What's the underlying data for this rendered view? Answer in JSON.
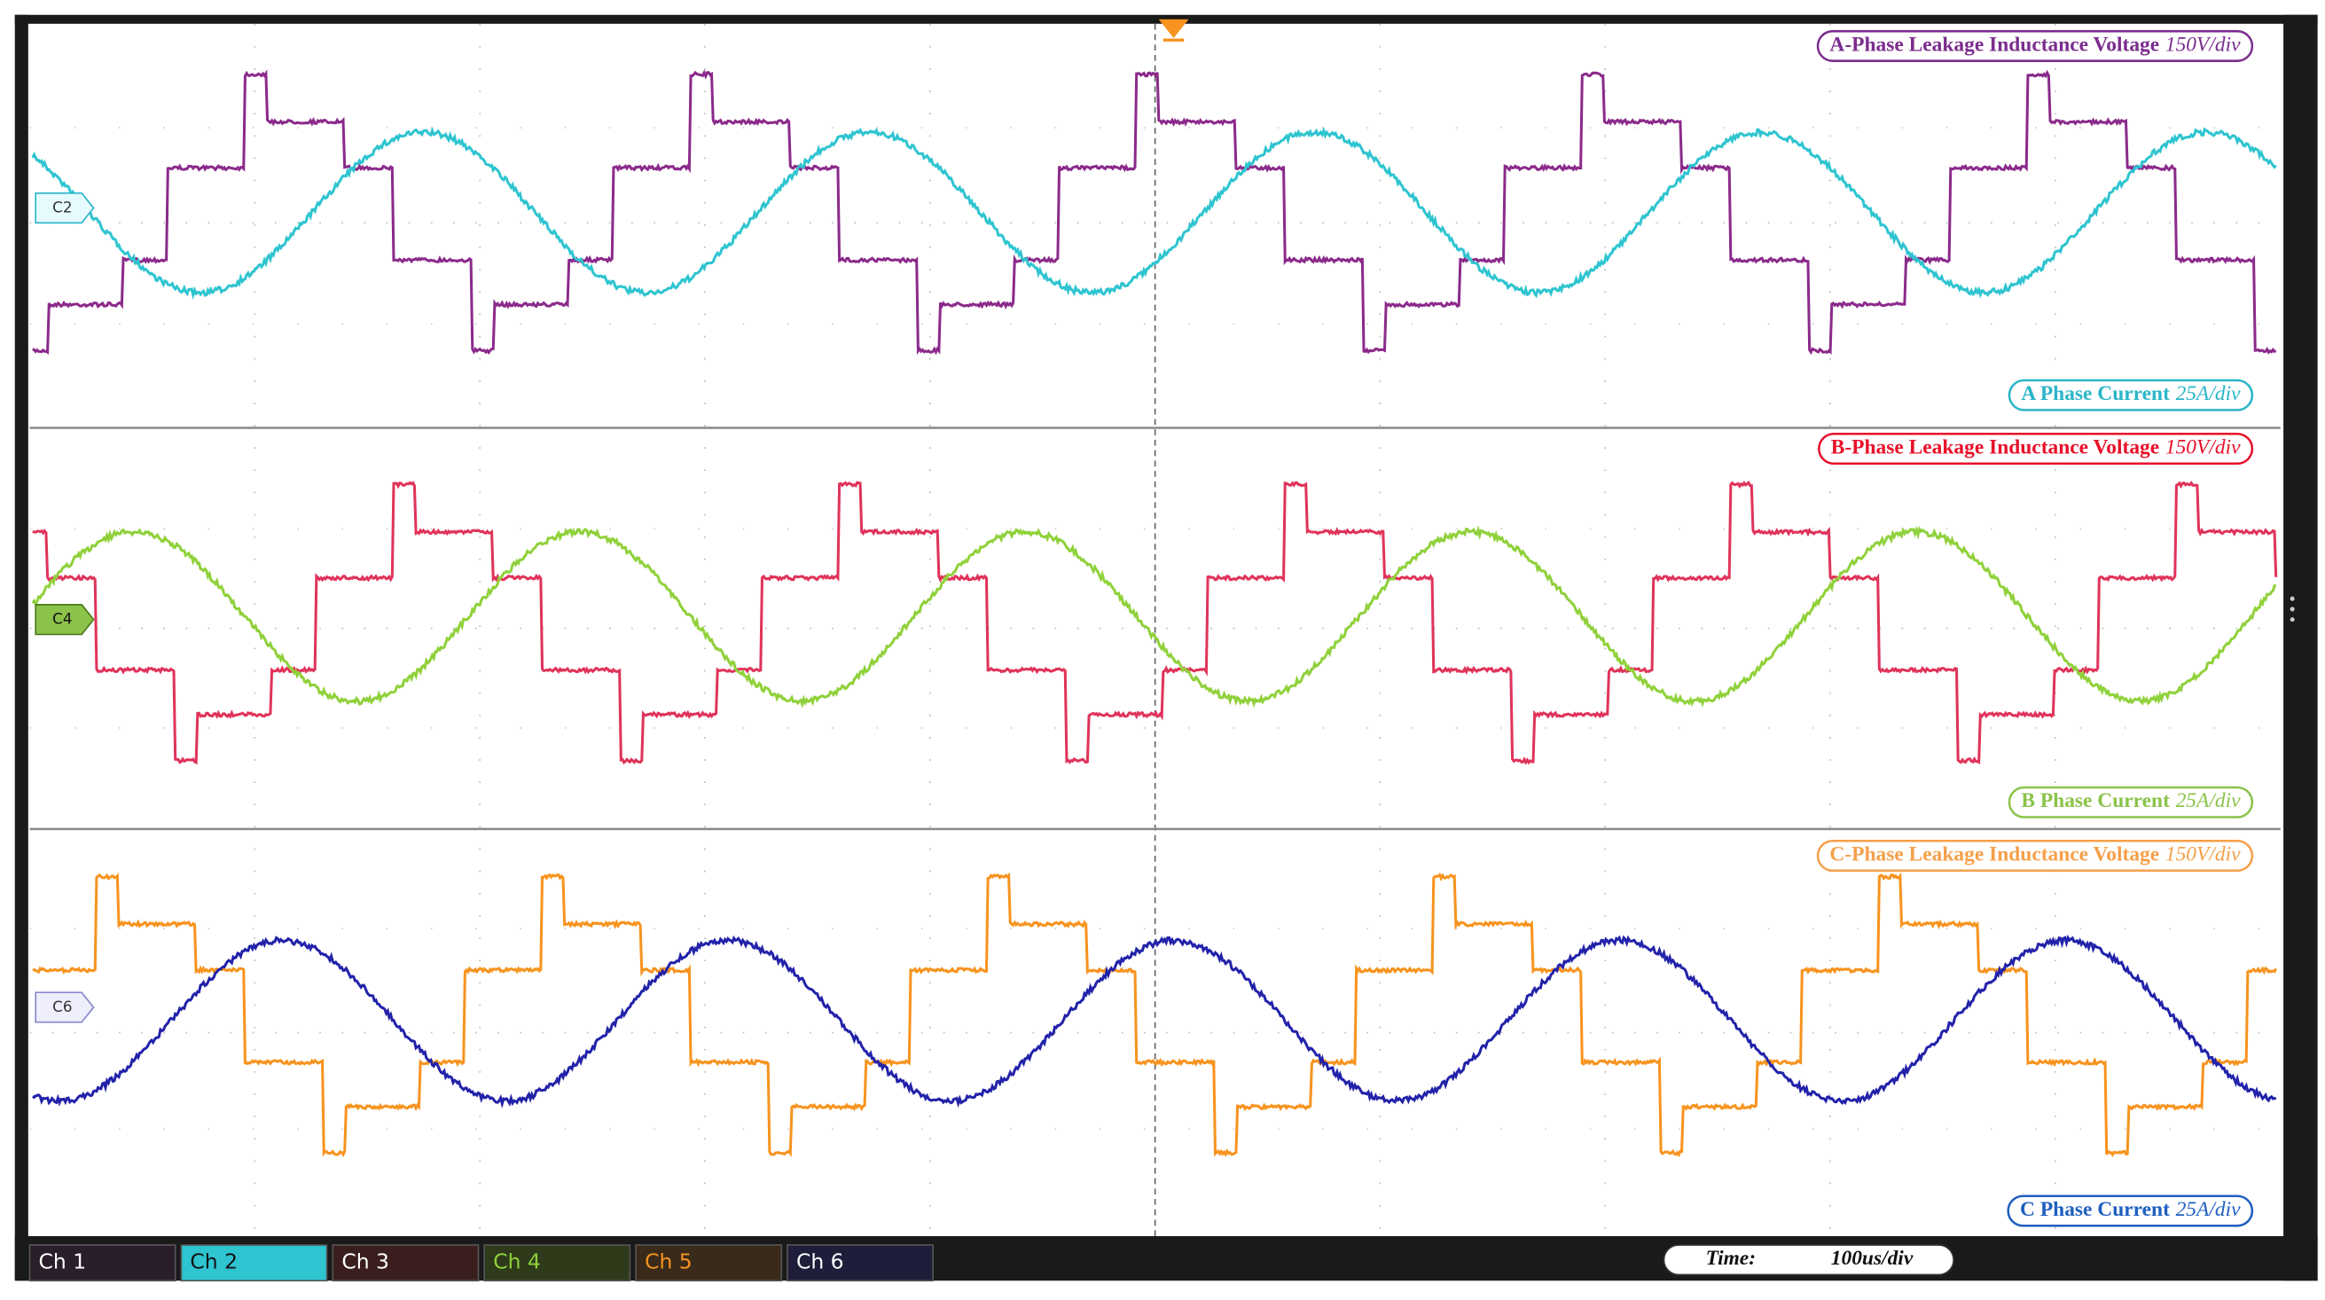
{
  "panels": [
    {
      "voltage": {
        "label": "A-Phase Leakage Inductance Voltage",
        "scale": "150V/div"
      },
      "current": {
        "label": "A Phase Current",
        "scale": "25A/div"
      },
      "channel_tag": "C2"
    },
    {
      "voltage": {
        "label": "B-Phase Leakage Inductance Voltage",
        "scale": "150V/div"
      },
      "current": {
        "label": "B Phase Current",
        "scale": "25A/div"
      },
      "channel_tag": "C4"
    },
    {
      "voltage": {
        "label": "C-Phase Leakage Inductance Voltage",
        "scale": "150V/div"
      },
      "current": {
        "label": "C Phase Current",
        "scale": "25A/div"
      },
      "channel_tag": "C6"
    }
  ],
  "channels": [
    "Ch 1",
    "Ch 2",
    "Ch 3",
    "Ch 4",
    "Ch 5",
    "Ch 6"
  ],
  "time": {
    "label": "Time:",
    "value": "100us/div"
  }
}
